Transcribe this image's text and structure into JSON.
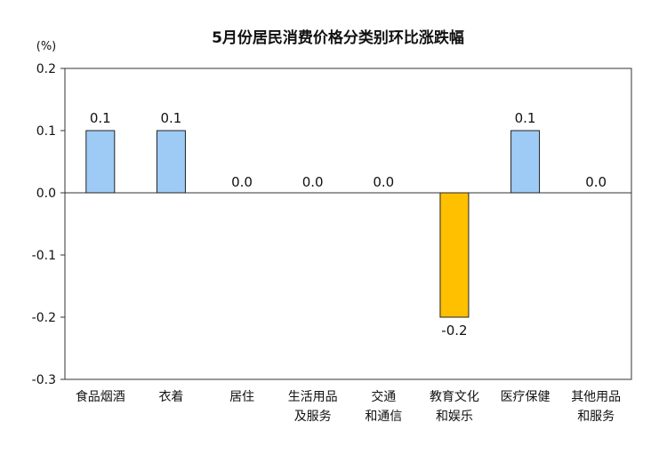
{
  "chart_data": {
    "type": "bar",
    "title": "5月份居民消费价格分类别环比涨跌幅",
    "unit_label": "(%)",
    "xlabel": "",
    "ylabel": "",
    "ylim": [
      -0.3,
      0.2
    ],
    "yticks": [
      "0.2",
      "0.1",
      "0.0",
      "-0.1",
      "-0.2",
      "-0.3"
    ],
    "grid": false,
    "categories": [
      [
        "食品烟酒"
      ],
      [
        "衣着"
      ],
      [
        "居住"
      ],
      [
        "生活用品",
        "及服务"
      ],
      [
        "交通",
        "和通信"
      ],
      [
        "教育文化",
        "和娱乐"
      ],
      [
        "医疗保健"
      ],
      [
        "其他用品",
        "和服务"
      ]
    ],
    "values": [
      0.1,
      0.1,
      0.0,
      0.0,
      0.0,
      -0.2,
      0.1,
      0.0
    ],
    "value_labels": [
      "0.1",
      "0.1",
      "0.0",
      "0.0",
      "0.0",
      "-0.2",
      "0.1",
      "0.0"
    ],
    "colors": {
      "positive_fill": "#9ecbf5",
      "negative_fill": "#ffc000",
      "bar_stroke": "#222222",
      "axis": "#333333"
    }
  }
}
